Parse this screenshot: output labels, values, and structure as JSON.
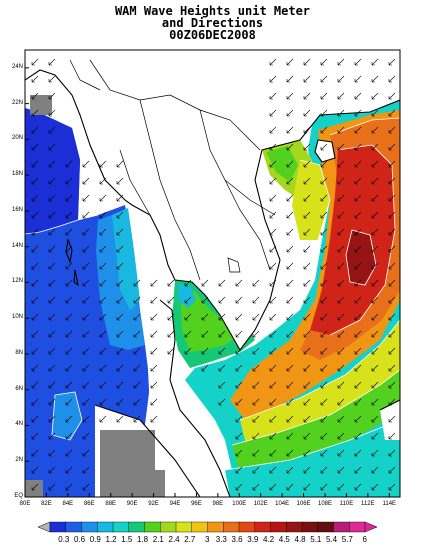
{
  "title": {
    "line1": "WAM Wave Heights unit Meter",
    "line2": "and Directions",
    "line3": "00Z06DEC2008"
  },
  "axes": {
    "x_ticks": [
      "80E",
      "82E",
      "84E",
      "86E",
      "88E",
      "90E",
      "92E",
      "94E",
      "96E",
      "98E",
      "100E",
      "102E",
      "104E",
      "106E",
      "108E",
      "110E",
      "112E",
      "114E"
    ],
    "y_ticks": [
      "EQ",
      "2N",
      "4N",
      "6N",
      "8N",
      "10N",
      "12N",
      "14N",
      "16N",
      "18N",
      "20N",
      "22N",
      "24N"
    ],
    "lon_range": [
      80,
      115
    ],
    "lat_range": [
      0,
      25
    ]
  },
  "colorbar": {
    "labels": [
      "0.3",
      "0.6",
      "0.9",
      "1.2",
      "1.5",
      "1.8",
      "2.1",
      "2.4",
      "2.7",
      "3",
      "3.3",
      "3.6",
      "3.9",
      "4.2",
      "4.5",
      "4.8",
      "5.1",
      "5.4",
      "5.7",
      "6"
    ],
    "colors": [
      "#1c2fd6",
      "#1f5fe6",
      "#1f90ea",
      "#18b8e0",
      "#14d2c8",
      "#14c878",
      "#52d21e",
      "#a4d81e",
      "#d8e21a",
      "#f0c414",
      "#f09614",
      "#e8701a",
      "#e04814",
      "#d02418",
      "#b41414",
      "#961414",
      "#7a1010",
      "#601010",
      "#b41e78",
      "#e02896"
    ]
  },
  "colors": {
    "land": "#ffffff",
    "land_mask": "#808080",
    "coast": "#000000",
    "contour": "#ffffff"
  }
}
